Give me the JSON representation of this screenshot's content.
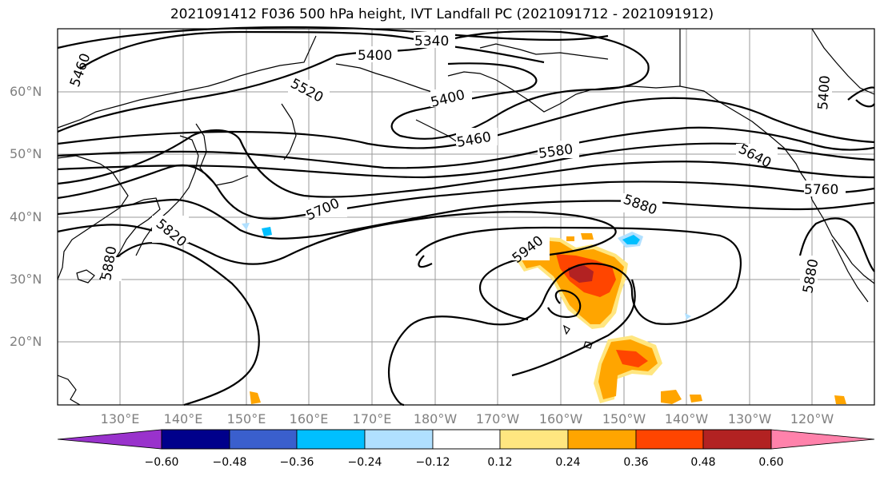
{
  "title": "2021091412 F036 500 hPa height, IVT Landfall PC (2021091712 - 2021091912)",
  "lat_labels": [
    "60°N",
    "50°N",
    "40°N",
    "30°N",
    "20°N"
  ],
  "lon_labels": [
    "130°E",
    "140°E",
    "150°E",
    "160°E",
    "170°E",
    "180°W",
    "170°W",
    "160°W",
    "150°W",
    "140°W",
    "130°W",
    "120°W"
  ],
  "contour_labels": [
    "5340",
    "5400",
    "5460",
    "5520",
    "5400",
    "5460",
    "5580",
    "5640",
    "5700",
    "5760",
    "5820",
    "5880",
    "5880",
    "5880",
    "5940",
    "5400"
  ],
  "colorbar": {
    "ticks": [
      "−0.60",
      "−0.48",
      "−0.36",
      "−0.24",
      "−0.12",
      "0.12",
      "0.24",
      "0.36",
      "0.48",
      "0.60"
    ],
    "colors": [
      "#9932cc",
      "#00008b",
      "#3a5fcd",
      "#00bfff",
      "#b0e0ff",
      "#ffffff",
      "#ffe680",
      "#ffa500",
      "#ff4500",
      "#b22222",
      "#ff82ab"
    ]
  }
}
